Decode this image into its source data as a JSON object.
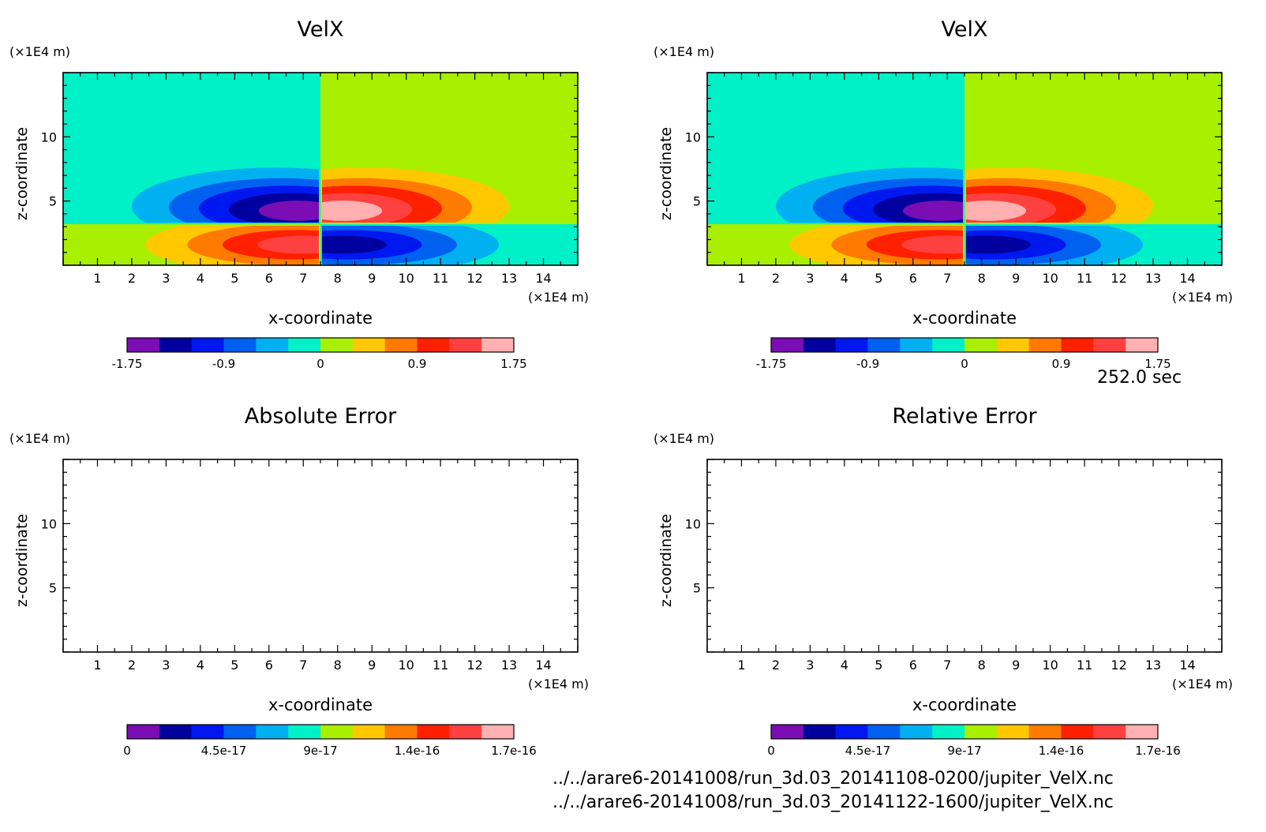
{
  "time_label": "252.0 sec",
  "files": [
    "../../arare6-20141008/run_3d.03_20141108-0200/jupiter_VelX.nc",
    "../../arare6-20141008/run_3d.03_20141122-1600/jupiter_VelX.nc"
  ],
  "chart_data": [
    {
      "type": "heatmap",
      "title": "VelX",
      "xlabel": "x-coordinate",
      "ylabel": "z-coordinate",
      "x_unit": "(×1E4 m)",
      "y_unit": "(×1E4 m)",
      "xlim": [
        0,
        15
      ],
      "ylim": [
        0,
        15
      ],
      "xticks": [
        1,
        2,
        3,
        4,
        5,
        6,
        7,
        8,
        9,
        10,
        11,
        12,
        13,
        14
      ],
      "yticks": [
        5,
        10
      ],
      "colorbar": {
        "colors": [
          "#7a0db3",
          "#00009e",
          "#0018f0",
          "#0060f0",
          "#00b0f0",
          "#00f0c8",
          "#a8f000",
          "#ffc800",
          "#ff7a00",
          "#ff2000",
          "#ff4040",
          "#ffb0b0"
        ],
        "tick_labels": [
          "-1.75",
          "-0.9",
          "0",
          "0.9",
          "1.75"
        ]
      },
      "field": {
        "background_upper_left": "#00f0c8",
        "background_upper_right": "#a8f000",
        "background_lower_left": "#a8f000",
        "background_lower_right": "#00f0c8",
        "dipole_center_x": 7.5,
        "dipole_center_z": 3.2,
        "peak": 1.75
      }
    },
    {
      "type": "heatmap",
      "title": "VelX",
      "xlabel": "x-coordinate",
      "ylabel": "z-coordinate",
      "x_unit": "(×1E4 m)",
      "y_unit": "(×1E4 m)",
      "xlim": [
        0,
        15
      ],
      "ylim": [
        0,
        15
      ],
      "xticks": [
        1,
        2,
        3,
        4,
        5,
        6,
        7,
        8,
        9,
        10,
        11,
        12,
        13,
        14
      ],
      "yticks": [
        5,
        10
      ],
      "colorbar": {
        "colors": [
          "#7a0db3",
          "#00009e",
          "#0018f0",
          "#0060f0",
          "#00b0f0",
          "#00f0c8",
          "#a8f000",
          "#ffc800",
          "#ff7a00",
          "#ff2000",
          "#ff4040",
          "#ffb0b0"
        ],
        "tick_labels": [
          "-1.75",
          "-0.9",
          "0",
          "0.9",
          "1.75"
        ]
      },
      "field": {
        "background_upper_left": "#00f0c8",
        "background_upper_right": "#a8f000",
        "background_lower_left": "#a8f000",
        "background_lower_right": "#00f0c8",
        "dipole_center_x": 7.5,
        "dipole_center_z": 3.2,
        "peak": 1.75
      }
    },
    {
      "type": "heatmap",
      "title": "Absolute Error",
      "xlabel": "x-coordinate",
      "ylabel": "z-coordinate",
      "x_unit": "(×1E4 m)",
      "y_unit": "(×1E4 m)",
      "xlim": [
        0,
        15
      ],
      "ylim": [
        0,
        15
      ],
      "xticks": [
        1,
        2,
        3,
        4,
        5,
        6,
        7,
        8,
        9,
        10,
        11,
        12,
        13,
        14
      ],
      "yticks": [
        5,
        10
      ],
      "colorbar": {
        "colors": [
          "#7a0db3",
          "#00009e",
          "#0018f0",
          "#0060f0",
          "#00b0f0",
          "#00f0c8",
          "#a8f000",
          "#ffc800",
          "#ff7a00",
          "#ff2000",
          "#ff4040",
          "#ffb0b0"
        ],
        "tick_labels": [
          "0",
          "4.5e-17",
          "9e-17",
          "1.4e-16",
          "1.7e-16"
        ]
      },
      "field": null
    },
    {
      "type": "heatmap",
      "title": "Relative Error",
      "xlabel": "x-coordinate",
      "ylabel": "z-coordinate",
      "x_unit": "(×1E4 m)",
      "y_unit": "(×1E4 m)",
      "xlim": [
        0,
        15
      ],
      "ylim": [
        0,
        15
      ],
      "xticks": [
        1,
        2,
        3,
        4,
        5,
        6,
        7,
        8,
        9,
        10,
        11,
        12,
        13,
        14
      ],
      "yticks": [
        5,
        10
      ],
      "colorbar": {
        "colors": [
          "#7a0db3",
          "#00009e",
          "#0018f0",
          "#0060f0",
          "#00b0f0",
          "#00f0c8",
          "#a8f000",
          "#ffc800",
          "#ff7a00",
          "#ff2000",
          "#ff4040",
          "#ffb0b0"
        ],
        "tick_labels": [
          "0",
          "4.5e-17",
          "9e-17",
          "1.4e-16",
          "1.7e-16"
        ]
      },
      "field": null
    }
  ]
}
